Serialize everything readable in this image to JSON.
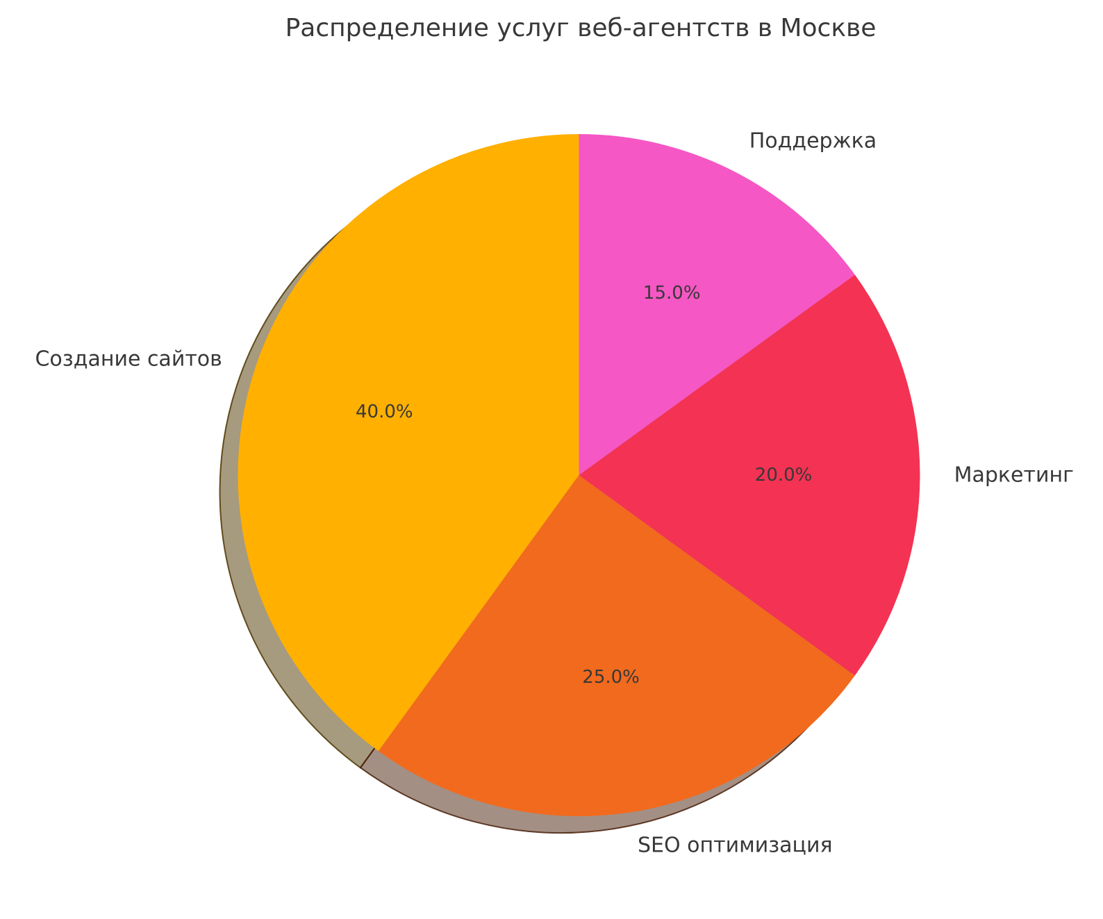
{
  "page": {
    "background_color": "#ffffff",
    "text_color": "#383838"
  },
  "chart_data": {
    "type": "pie",
    "title": "Распределение услуг веб-агентств в Москве",
    "slices": [
      {
        "label": "Создание сайтов",
        "value": 40.0,
        "pct_label": "40.0%",
        "color": "#ffb000"
      },
      {
        "label": "SEO оптимизация",
        "value": 25.0,
        "pct_label": "25.0%",
        "color": "#f26a1e"
      },
      {
        "label": "Маркетинг",
        "value": 20.0,
        "pct_label": "20.0%",
        "color": "#f43253"
      },
      {
        "label": "Поддержка",
        "value": 15.0,
        "pct_label": "15.0%",
        "color": "#f557c4"
      }
    ],
    "start_angle_deg": 90,
    "direction": "counterclockwise",
    "shadow": true,
    "label_distance": 1.1,
    "pct_distance": 0.6,
    "legend": "none",
    "grid": "off"
  }
}
